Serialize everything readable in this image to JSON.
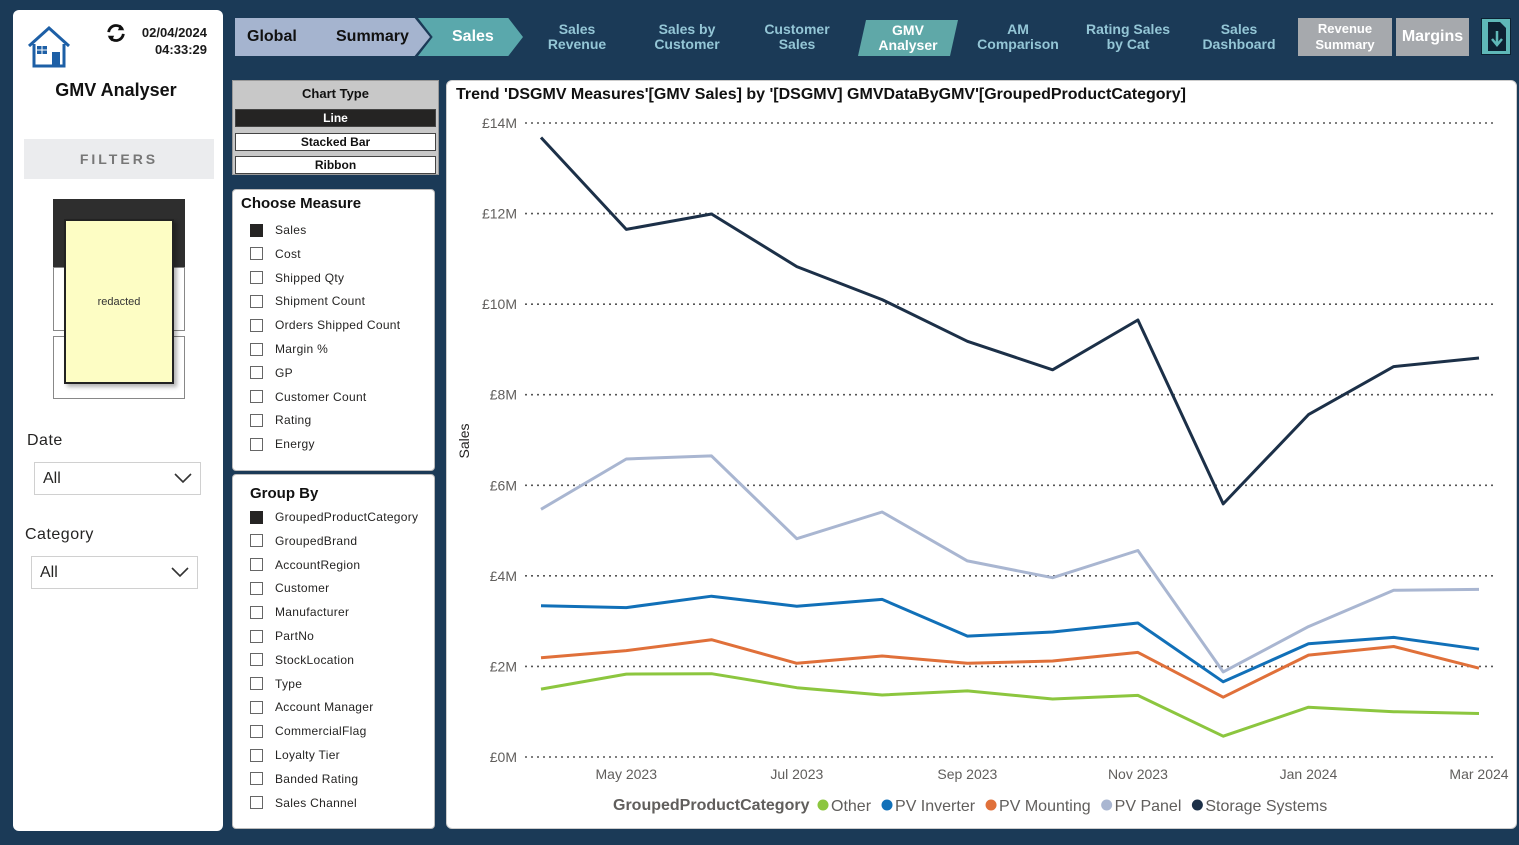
{
  "header": {
    "date": "02/04/2024",
    "time": "04:33:29",
    "app_title": "GMV Analyser"
  },
  "filters": {
    "title": "FILTERS",
    "redacted_label": "redacted",
    "date": {
      "label": "Date",
      "value": "All"
    },
    "category": {
      "label": "Category",
      "value": "All"
    }
  },
  "nav": {
    "breadcrumbs": [
      "Global",
      "Summary",
      "Sales"
    ],
    "links": [
      {
        "line1": "Sales",
        "line2": "Revenue"
      },
      {
        "line1": "Sales by",
        "line2": "Customer"
      },
      {
        "line1": "Customer",
        "line2": "Sales"
      },
      {
        "line1": "GMV",
        "line2": "Analyser"
      },
      {
        "line1": "AM",
        "line2": "Comparison"
      },
      {
        "line1": "Rating Sales",
        "line2": "by Cat"
      },
      {
        "line1": "Sales",
        "line2": "Dashboard"
      }
    ],
    "revenue_summary": {
      "line1": "Revenue",
      "line2": "Summary"
    },
    "margins": "Margins",
    "export_icon": "download-icon"
  },
  "chart_type": {
    "title": "Chart Type",
    "options": [
      "Line",
      "Stacked Bar",
      "Ribbon"
    ],
    "selected": "Line"
  },
  "measure": {
    "title": "Choose Measure",
    "items": [
      "Sales",
      "Cost",
      "Shipped Qty",
      "Shipment Count",
      "Orders Shipped Count",
      "Margin %",
      "GP",
      "Customer Count",
      "Rating",
      "Energy"
    ],
    "selected": "Sales"
  },
  "group_by": {
    "title": "Group By",
    "items": [
      "GroupedProductCategory",
      "GroupedBrand",
      "AccountRegion",
      "Customer",
      "Manufacturer",
      "PartNo",
      "StockLocation",
      "Type",
      "Account Manager",
      "CommercialFlag",
      "Loyalty Tier",
      "Banded Rating",
      "Sales Channel"
    ],
    "selected": "GroupedProductCategory"
  },
  "colors": {
    "Other": "#8cc63f",
    "PV Inverter": "#1170b8",
    "PV Mounting": "#e0703a",
    "PV Panel": "#a9b6d1",
    "Storage Systems": "#1c3048"
  },
  "chart_data": {
    "type": "line",
    "title": "Trend 'DSGMV Measures'[GMV Sales] by '[DSGMV] GMVDataByGMV'[GroupedProductCategory]",
    "xlabel": "",
    "ylabel": "Sales",
    "x": [
      "2023-04",
      "2023-05",
      "2023-06",
      "2023-07",
      "2023-08",
      "2023-09",
      "2023-10",
      "2023-11",
      "2023-12",
      "2024-01",
      "2024-02",
      "2024-03"
    ],
    "x_tick_labels": [
      "May 2023",
      "Jul 2023",
      "Sep 2023",
      "Nov 2023",
      "Jan 2024",
      "Mar 2024"
    ],
    "y_tick_labels": [
      "£0M",
      "£2M",
      "£4M",
      "£6M",
      "£8M",
      "£10M",
      "£12M",
      "£14M"
    ],
    "ylim": [
      0,
      14000000
    ],
    "grid": true,
    "legend_title": "GroupedProductCategory",
    "legend_position": "bottom",
    "series": [
      {
        "name": "Other",
        "values": [
          1500000,
          1830000,
          1840000,
          1530000,
          1370000,
          1460000,
          1280000,
          1360000,
          460000,
          1100000,
          1000000,
          960000
        ]
      },
      {
        "name": "PV Inverter",
        "values": [
          3340000,
          3300000,
          3550000,
          3330000,
          3480000,
          2670000,
          2760000,
          2960000,
          1660000,
          2500000,
          2640000,
          2380000
        ]
      },
      {
        "name": "PV Mounting",
        "values": [
          2190000,
          2350000,
          2590000,
          2070000,
          2230000,
          2070000,
          2120000,
          2310000,
          1320000,
          2250000,
          2440000,
          1960000
        ]
      },
      {
        "name": "PV Panel",
        "values": [
          5470000,
          6580000,
          6650000,
          4820000,
          5410000,
          4330000,
          3960000,
          4560000,
          1880000,
          2880000,
          3680000,
          3700000
        ]
      },
      {
        "name": "Storage Systems",
        "values": [
          13680000,
          11650000,
          11990000,
          10830000,
          10100000,
          9180000,
          8550000,
          9650000,
          5590000,
          7560000,
          8620000,
          8810000
        ]
      }
    ]
  }
}
